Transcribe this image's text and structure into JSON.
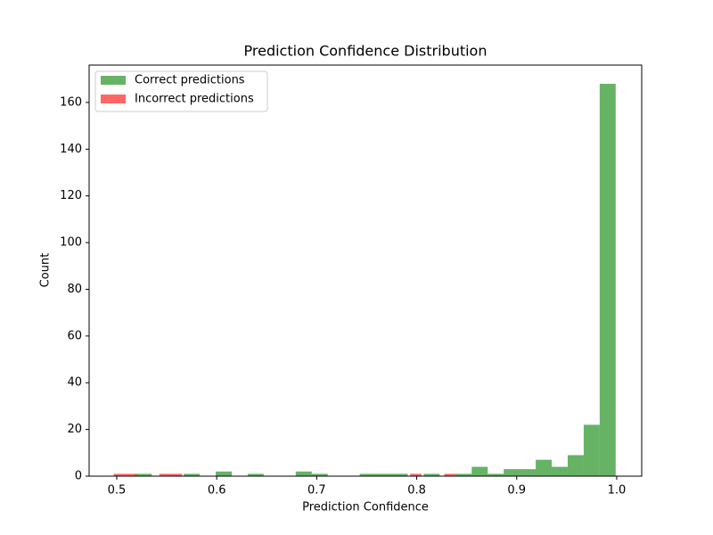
{
  "chart_data": {
    "type": "histogram",
    "title": "Prediction Confidence Distribution",
    "x_label": "Prediction Confidence",
    "y_label": "Count",
    "series": [
      {
        "name": "Correct predictions",
        "color": "#008000",
        "alpha": 0.6,
        "bins": [
          0.519,
          0.535,
          0.551,
          0.567,
          0.583,
          0.599,
          0.615,
          0.631,
          0.647,
          0.663,
          0.679,
          0.695,
          0.711,
          0.727,
          0.743,
          0.759,
          0.775,
          0.791,
          0.807,
          0.823,
          0.839,
          0.855,
          0.871,
          0.887,
          0.903,
          0.919,
          0.935,
          0.951,
          0.967,
          0.983,
          0.999
        ],
        "values": [
          1,
          0,
          0,
          1,
          0,
          2,
          0,
          1,
          0,
          0,
          2,
          1,
          0,
          0,
          1,
          1,
          1,
          0,
          1,
          0,
          1,
          4,
          1,
          3,
          3,
          7,
          4,
          9,
          22,
          168
        ]
      },
      {
        "name": "Incorrect predictions",
        "color": "#ff0000",
        "alpha": 0.6,
        "bins": [
          0.497,
          0.5084,
          0.5198,
          0.5312,
          0.5426,
          0.554,
          0.5654,
          0.5768,
          0.5882,
          0.5996,
          0.611,
          0.6224,
          0.6338,
          0.6452,
          0.6566,
          0.668,
          0.6794,
          0.6908,
          0.7022,
          0.7136,
          0.725,
          0.7364,
          0.7478,
          0.7592,
          0.7706,
          0.782,
          0.7934,
          0.8048,
          0.8162,
          0.8276,
          0.839
        ],
        "values": [
          1,
          1,
          0,
          0,
          1,
          1,
          0,
          0,
          0,
          0,
          0,
          0,
          0,
          0,
          0,
          0,
          0,
          0,
          0,
          0,
          0,
          0,
          0,
          0,
          0,
          0,
          1,
          0,
          0,
          1
        ]
      }
    ],
    "xlim": [
      0.4724,
      1.025
    ],
    "ylim": [
      0,
      176
    ],
    "xticks": [
      0.5,
      0.6,
      0.7,
      0.8,
      0.9,
      {
        "value": 1,
        "label": "1.0"
      }
    ],
    "yticks": [
      0,
      20,
      40,
      60,
      80,
      100,
      120,
      140,
      160
    ],
    "legend": "upper left"
  }
}
